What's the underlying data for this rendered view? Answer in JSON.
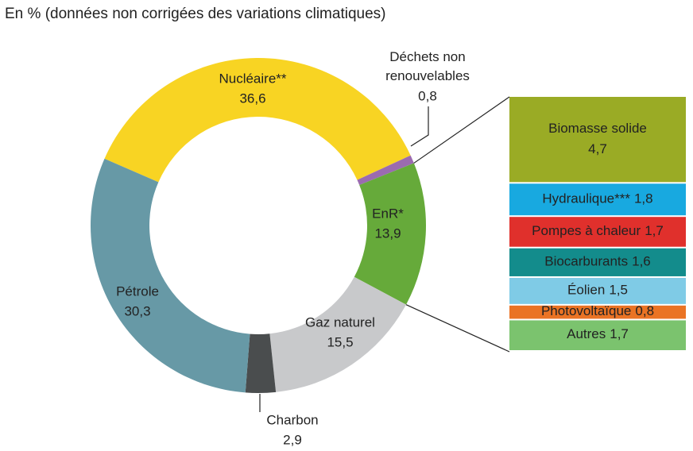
{
  "chart_data": [
    {
      "type": "donut",
      "title": "En % (données non corrigées des variations climatiques)",
      "categories": [
        "Nucléaire**",
        "Déchets non renouvelables",
        "EnR*",
        "Gaz naturel",
        "Charbon",
        "Pétrole"
      ],
      "values": [
        36.6,
        0.8,
        13.9,
        15.5,
        2.9,
        30.3
      ],
      "value_labels": [
        "36,6",
        "0,8",
        "13,9",
        "15,5",
        "2,9",
        "30,3"
      ],
      "colors": [
        "#f8d423",
        "#9b6bb0",
        "#66aa3a",
        "#c8c9cb",
        "#4a4d4e",
        "#6799a6"
      ]
    },
    {
      "type": "stacked",
      "categories": [
        "Biomasse solide",
        "Hydraulique***",
        "Pompes à chaleur",
        "Biocarburants",
        "Éolien",
        "Photovoltaïque",
        "Autres"
      ],
      "values": [
        4.7,
        1.8,
        1.7,
        1.6,
        1.5,
        0.8,
        1.7
      ],
      "value_labels": [
        "4,7",
        "1,8",
        "1,7",
        "1,6",
        "1,5",
        "0,8",
        "1,7"
      ],
      "colors": [
        "#9aab25",
        "#18a9e0",
        "#e0302c",
        "#138c8c",
        "#7fcbe6",
        "#ea7324",
        "#7bc36e"
      ]
    }
  ]
}
